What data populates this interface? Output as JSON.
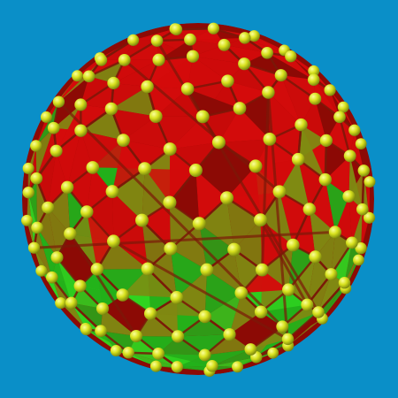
{
  "scene": {
    "subject": "polyhedral-sphere-with-vertex-spheres",
    "colors": {
      "background": "#0a8fc8",
      "face_red": "#d40b0b",
      "face_dark_red": "#8c0a05",
      "face_olive": "#7f8a12",
      "face_green": "#22b01a",
      "face_bright_green": "#2fd420",
      "edge": "#7a1808",
      "vertex": "#d8e21e",
      "vertex_highlight": "#fbff9a",
      "vertex_shadow": "#6e7a0a"
    }
  }
}
